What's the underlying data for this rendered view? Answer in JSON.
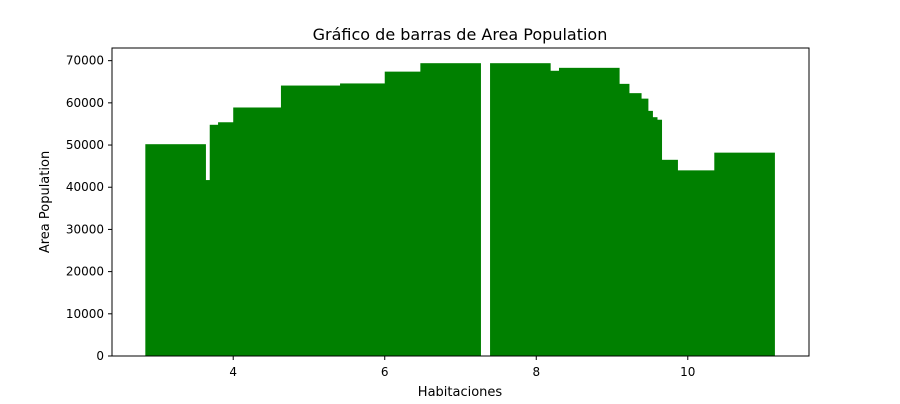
{
  "chart_data": {
    "type": "bar",
    "title": "Gráfico de barras de Area Population",
    "xlabel": "Habitaciones",
    "ylabel": "Area Population",
    "xlim": [
      2.4,
      11.6
    ],
    "ylim": [
      0,
      73000
    ],
    "xticks": [
      4,
      6,
      8,
      10
    ],
    "yticks": [
      0,
      10000,
      20000,
      30000,
      40000,
      50000,
      60000,
      70000
    ],
    "grid": false,
    "bar_color": "#008000",
    "bar_width": 0.8,
    "bars": [
      {
        "x": 3.24,
        "y": 50200
      },
      {
        "x": 3.7,
        "y": 41700
      },
      {
        "x": 4.09,
        "y": 54800
      },
      {
        "x": 4.2,
        "y": 55400
      },
      {
        "x": 4.4,
        "y": 58900
      },
      {
        "x": 5.03,
        "y": 64100
      },
      {
        "x": 5.81,
        "y": 64600
      },
      {
        "x": 6.4,
        "y": 67400
      },
      {
        "x": 6.87,
        "y": 69400
      },
      {
        "x": 7.79,
        "y": 69400
      },
      {
        "x": 8.12,
        "y": 67600
      },
      {
        "x": 8.7,
        "y": 68300
      },
      {
        "x": 8.83,
        "y": 64500
      },
      {
        "x": 8.99,
        "y": 62300
      },
      {
        "x": 9.08,
        "y": 61000
      },
      {
        "x": 9.14,
        "y": 58100
      },
      {
        "x": 9.2,
        "y": 56600
      },
      {
        "x": 9.26,
        "y": 56000
      },
      {
        "x": 9.47,
        "y": 46500
      },
      {
        "x": 9.52,
        "y": 42500
      },
      {
        "x": 9.96,
        "y": 44000
      },
      {
        "x": 10.75,
        "y": 48200
      }
    ]
  }
}
